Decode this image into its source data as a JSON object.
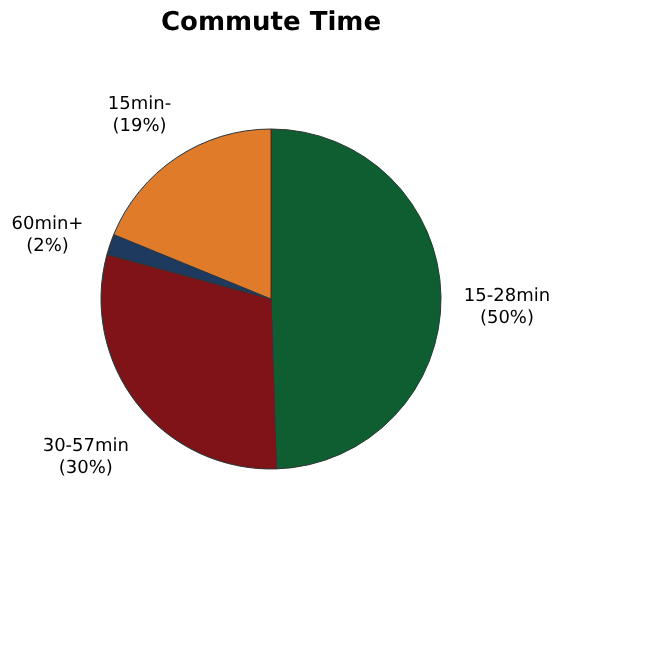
{
  "chart_data": {
    "type": "pie",
    "title": "Commute Time",
    "categories": [
      "15-28min",
      "30-57min",
      "60min+",
      "15min-"
    ],
    "values": [
      50,
      30,
      2,
      19
    ],
    "value_labels": [
      "(50%)",
      "(30%)",
      "(2%)",
      "(19%)"
    ],
    "colors": [
      "#0f5e32",
      "#7f1318",
      "#1f3a5f",
      "#e07b2a"
    ],
    "legend": false
  }
}
